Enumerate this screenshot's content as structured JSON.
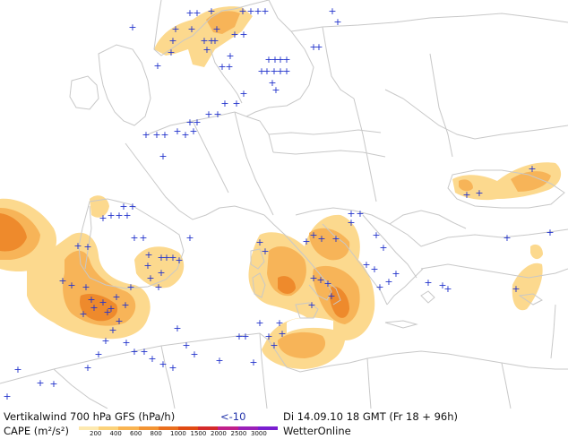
{
  "footer": {
    "line1_left": "Vertikalwind 700 hPa GFS (hPa/h)",
    "line1_threshold": "<-10",
    "line1_right": "Di 14.09.10 18 GMT (Fr 18 + 96h)",
    "line2_left": "CAPE (m²/s²)",
    "brand": "WetterOnline"
  },
  "cape_scale": {
    "ticks": [
      "200",
      "400",
      "600",
      "800",
      "1000",
      "1500",
      "2000",
      "2500",
      "3000"
    ],
    "colors": [
      "#fde9b0",
      "#fbd27a",
      "#f9b451",
      "#f39433",
      "#ea6f1e",
      "#e04a13",
      "#d42a2a",
      "#c0208a",
      "#9a20b8",
      "#7a1ed0"
    ]
  },
  "map": {
    "border_color": "#c8c8c8",
    "marker_symbol": "+",
    "marker_color": "#2233cc",
    "cape_light": "#fcd98e",
    "cape_mid": "#f7b458",
    "cape_dark": "#ee8a2c"
  }
}
